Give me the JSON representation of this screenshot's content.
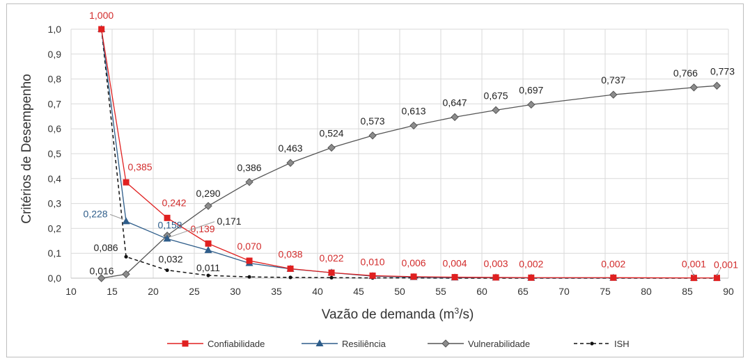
{
  "chart_data": {
    "type": "line",
    "xlabel": "Vazão de demanda (m³/s)",
    "ylabel": "Critérios de Desempenho",
    "xlim": [
      10,
      90
    ],
    "ylim": [
      0,
      1
    ],
    "x_ticks": [
      "10",
      "15",
      "20",
      "25",
      "30",
      "35",
      "40",
      "45",
      "50",
      "55",
      "60",
      "65",
      "70",
      "75",
      "80",
      "85",
      "90"
    ],
    "y_ticks": [
      "0,0",
      "0,1",
      "0,2",
      "0,3",
      "0,4",
      "0,5",
      "0,6",
      "0,7",
      "0,8",
      "0,9",
      "1,0"
    ],
    "grid": "vertical and horizontal",
    "legend_position": "bottom",
    "x": [
      13.7,
      16.7,
      21.7,
      26.7,
      31.7,
      36.7,
      41.7,
      46.7,
      51.7,
      56.7,
      61.7,
      66.0,
      76.0,
      85.8,
      88.6
    ],
    "series": [
      {
        "name": "Confiabilidade",
        "color": "#e02020",
        "marker": "square",
        "dash": "solid",
        "values": [
          1.0,
          0.385,
          0.242,
          0.139,
          0.07,
          0.038,
          0.022,
          0.01,
          0.006,
          0.004,
          0.003,
          0.002,
          0.002,
          0.001,
          0.001
        ],
        "labels": [
          "1,000",
          "0,385",
          "0,242",
          "0,139",
          "0,070",
          "0,038",
          "0,022",
          "0,010",
          "0,006",
          "0,004",
          "0,003",
          "0,002",
          "0,002",
          "0,001",
          "0,001"
        ]
      },
      {
        "name": "Resiliência",
        "color": "#2e5d8a",
        "marker": "triangle",
        "dash": "solid",
        "values": [
          1.0,
          0.228,
          0.158,
          0.112,
          0.06,
          0.037,
          0.022,
          0.008,
          0.004,
          0.002,
          0.002,
          0.001,
          0.001,
          0.001,
          0.001
        ],
        "labels": [
          "",
          "0,228",
          "0,158",
          "",
          "",
          "",
          "",
          "",
          "",
          "",
          "",
          "",
          "",
          "",
          ""
        ]
      },
      {
        "name": "Vulnerabilidade",
        "color": "#555555",
        "marker": "diamond",
        "dash": "solid",
        "values": [
          0.0,
          0.016,
          0.171,
          0.29,
          0.386,
          0.463,
          0.524,
          0.573,
          0.613,
          0.647,
          0.675,
          0.697,
          0.737,
          0.766,
          0.773
        ],
        "labels": [
          "",
          "0,016",
          "0,171",
          "0,290",
          "0,386",
          "0,463",
          "0,524",
          "0,573",
          "0,613",
          "0,647",
          "0,675",
          "0,697",
          "0,737",
          "0,766",
          "0,773"
        ]
      },
      {
        "name": "ISH",
        "color": "#111111",
        "marker": "circle",
        "dash": "dashed",
        "values": [
          1.0,
          0.086,
          0.032,
          0.011,
          0.005,
          0.003,
          0.002,
          0.001,
          0.001,
          0.0,
          0.0,
          0.0,
          0.0,
          0.0,
          0.0
        ],
        "labels": [
          "",
          "0,086",
          "0,032",
          "0,011",
          "",
          "",
          "",
          "",
          "",
          "",
          "",
          "",
          "",
          "",
          ""
        ]
      }
    ]
  }
}
